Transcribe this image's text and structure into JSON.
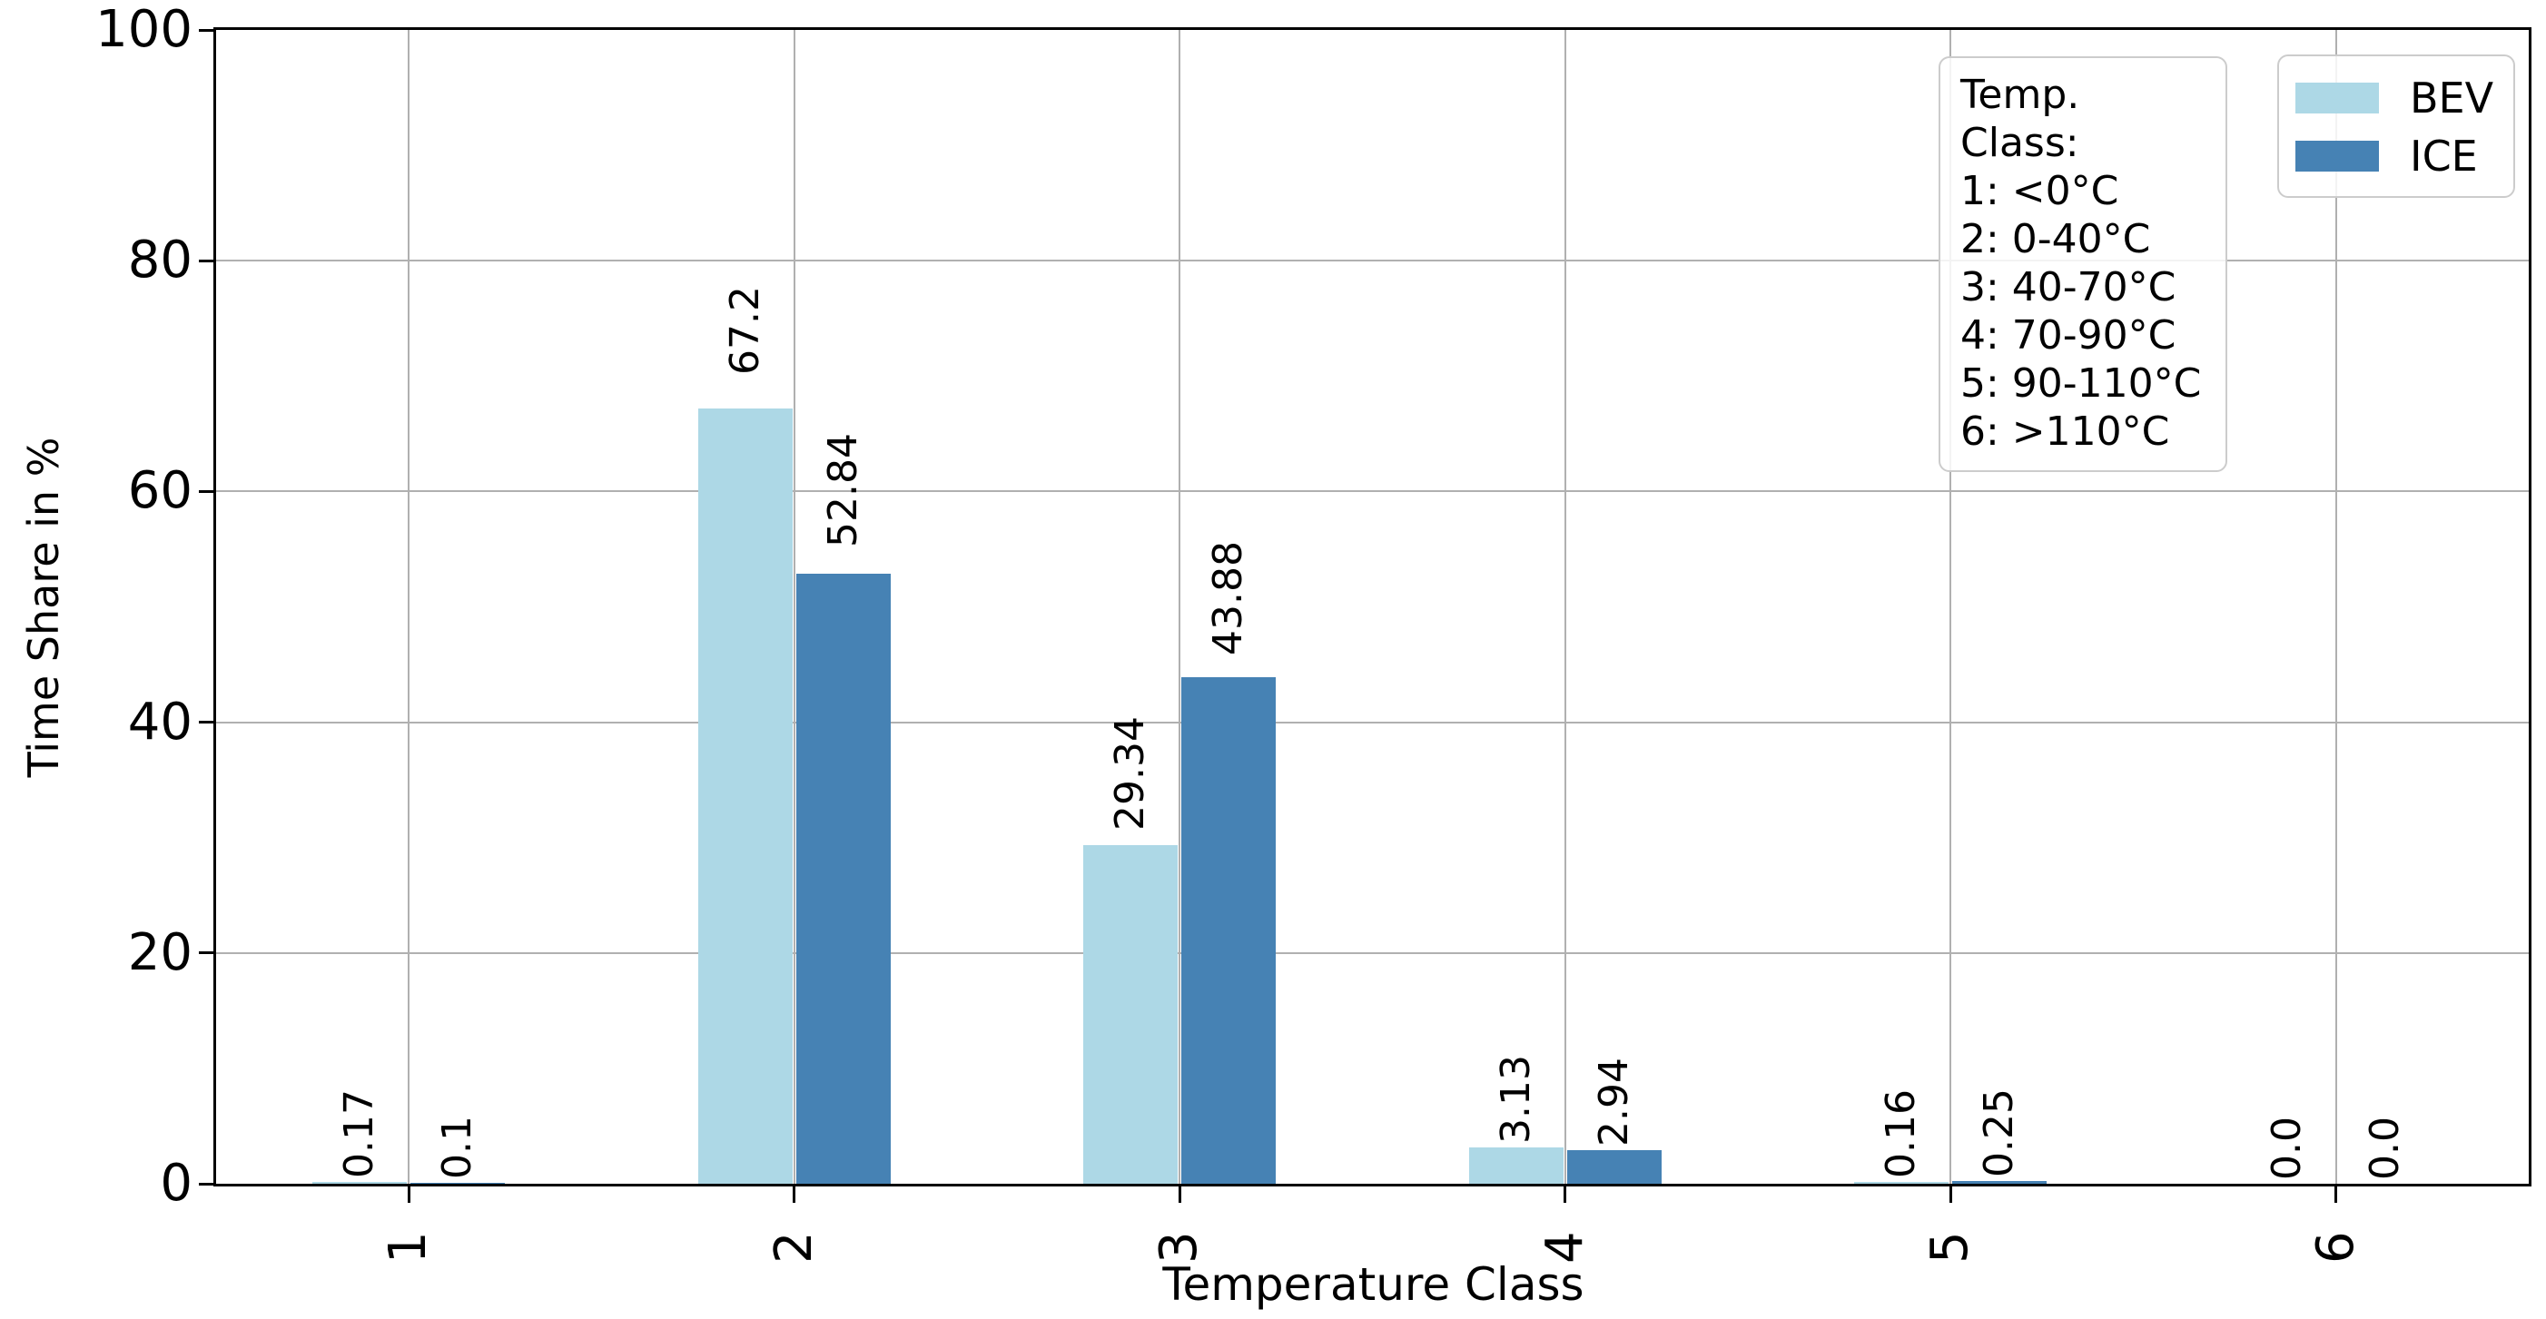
{
  "chart_data": {
    "type": "bar",
    "title": "",
    "xlabel": "Temperature Class",
    "ylabel": "Time Share in %",
    "categories": [
      "1",
      "2",
      "3",
      "4",
      "5",
      "6"
    ],
    "ylim": [
      0,
      100
    ],
    "yticks": [
      "0",
      "20",
      "40",
      "60",
      "80",
      "100"
    ],
    "grid": true,
    "legend_position": "upper right",
    "series": [
      {
        "name": "BEV",
        "color": "#add8e6",
        "values": [
          0.17,
          67.2,
          29.34,
          3.13,
          0.16,
          0.0
        ],
        "value_labels": [
          "0.17",
          "67.2",
          "29.34",
          "3.13",
          "0.16",
          "0.0"
        ]
      },
      {
        "name": "ICE",
        "color": "#4682b4",
        "values": [
          0.1,
          52.84,
          43.88,
          2.94,
          0.25,
          0.0
        ],
        "value_labels": [
          "0.1",
          "52.84",
          "43.88",
          "2.94",
          "0.25",
          "0.0"
        ]
      }
    ],
    "annotation_box": {
      "title": "Temp. Class:",
      "lines": [
        "1: <0°C",
        "2: 0-40°C",
        "3: 40-70°C",
        "4: 70-90°C",
        "5: 90-110°C",
        "6: >110°C"
      ]
    },
    "colors": {
      "grid": "#b0b0b0",
      "spine": "#000000",
      "legend_border": "#cccccc"
    }
  }
}
